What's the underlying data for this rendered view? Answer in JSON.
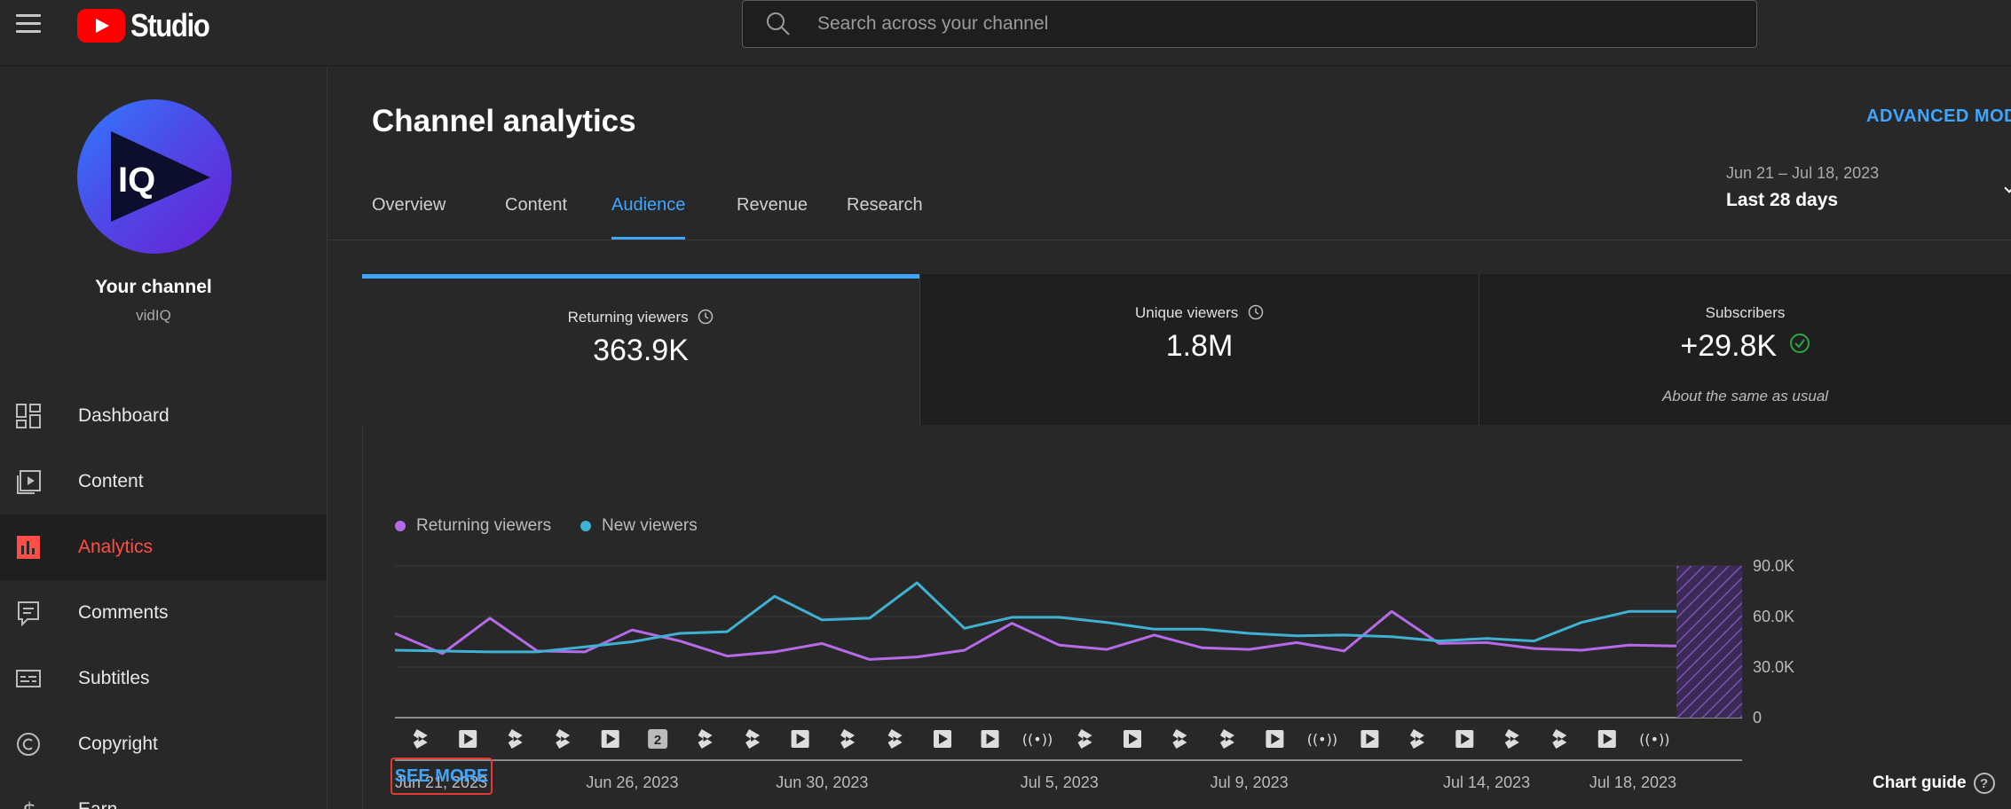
{
  "header": {
    "logo_text": "Studio",
    "search_placeholder": "Search across your channel"
  },
  "sidebar": {
    "channel_name": "Your channel",
    "channel_handle": "vidIQ",
    "avatar_text": "IQ",
    "items": [
      {
        "label": "Dashboard",
        "icon": "dashboard-icon"
      },
      {
        "label": "Content",
        "icon": "content-icon"
      },
      {
        "label": "Analytics",
        "icon": "analytics-icon",
        "active": true
      },
      {
        "label": "Comments",
        "icon": "comments-icon"
      },
      {
        "label": "Subtitles",
        "icon": "subtitles-icon"
      },
      {
        "label": "Copyright",
        "icon": "copyright-icon"
      },
      {
        "label": "Earn",
        "icon": "earn-icon"
      }
    ]
  },
  "main": {
    "title": "Channel analytics",
    "advanced_mode": "ADVANCED MOD",
    "tabs": [
      {
        "label": "Overview"
      },
      {
        "label": "Content"
      },
      {
        "label": "Audience",
        "active": true
      },
      {
        "label": "Revenue"
      },
      {
        "label": "Research"
      }
    ],
    "date_range": "Jun 21 – Jul 18, 2023",
    "date_label": "Last 28 days"
  },
  "metrics": [
    {
      "label": "Returning viewers",
      "value": "363.9K",
      "info_icon": true
    },
    {
      "label": "Unique viewers",
      "value": "1.8M",
      "info_icon": true
    },
    {
      "label": "Subscribers",
      "value": "+29.8K",
      "note": "About the same as usual",
      "check_icon": true
    }
  ],
  "colors": {
    "accent": "#3ea6ff",
    "active_nav": "#ff4e45",
    "returning": "#b56ae8",
    "new": "#3fb1d2",
    "see_more_border": "#e53935"
  },
  "chart_data": {
    "type": "line",
    "legend": [
      "Returning viewers",
      "New viewers"
    ],
    "x": [
      "Jun 21, 2023",
      "Jun 22",
      "Jun 23",
      "Jun 24",
      "Jun 25",
      "Jun 26, 2023",
      "Jun 27",
      "Jun 28",
      "Jun 29",
      "Jun 30, 2023",
      "Jul 1",
      "Jul 2",
      "Jul 3",
      "Jul 4",
      "Jul 5, 2023",
      "Jul 6",
      "Jul 7",
      "Jul 8",
      "Jul 9, 2023",
      "Jul 10",
      "Jul 11",
      "Jul 12",
      "Jul 13",
      "Jul 14, 2023",
      "Jul 15",
      "Jul 16",
      "Jul 17",
      "Jul 18, 2023"
    ],
    "x_tick_labels": [
      "Jun 21, 2023",
      "Jun 26, 2023",
      "Jun 30, 2023",
      "Jul 5, 2023",
      "Jul 9, 2023",
      "Jul 14, 2023",
      "Jul 18, 2023"
    ],
    "x_tick_index": [
      0,
      5,
      9,
      14,
      18,
      23,
      27
    ],
    "series": [
      {
        "name": "Returning viewers",
        "color": "#b56ae8",
        "values": [
          50000,
          38000,
          59000,
          39500,
          39000,
          52000,
          45500,
          36500,
          39000,
          44000,
          34500,
          36000,
          40000,
          56000,
          43000,
          40500,
          49000,
          41500,
          40500,
          44500,
          39500,
          63000,
          44000,
          44500,
          41000,
          40000,
          43000,
          42500
        ]
      },
      {
        "name": "New viewers",
        "color": "#3fb1d2",
        "values": [
          40000,
          39500,
          39000,
          39000,
          42000,
          45000,
          50000,
          51000,
          72000,
          58000,
          59000,
          80000,
          53000,
          59500,
          59500,
          56500,
          52500,
          52500,
          50000,
          48500,
          49000,
          48000,
          45500,
          47000,
          45500,
          56500,
          63000,
          63000
        ]
      }
    ],
    "ylim": [
      0,
      90000
    ],
    "y_tick_labels": [
      "90.0K",
      "60.0K",
      "30.0K",
      "0"
    ],
    "y_ticks": [
      90000,
      60000,
      30000,
      0
    ],
    "grid": true,
    "legend_position": "top-left",
    "hatched_last_day": true,
    "upload_markers": [
      "shorts",
      "video",
      "shorts",
      "shorts",
      "video",
      "count-2",
      "shorts",
      "shorts",
      "video",
      "shorts",
      "shorts",
      "video",
      "video",
      "live",
      "shorts",
      "video",
      "shorts",
      "shorts",
      "video",
      "live",
      "video",
      "shorts",
      "video",
      "shorts",
      "shorts",
      "video",
      "live"
    ]
  },
  "footer": {
    "see_more": "SEE MORE",
    "chart_guide": "Chart guide",
    "help_icon": "?"
  }
}
